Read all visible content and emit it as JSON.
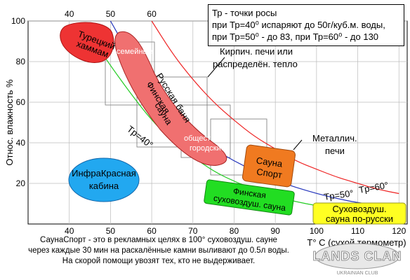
{
  "chart_data": {
    "type": "line",
    "xlabel": "T° C (сухой термометр)",
    "ylabel": "Относ. влажность %",
    "x_ticks_bottom": [
      40,
      50,
      60,
      70,
      80,
      90,
      100,
      110,
      120
    ],
    "x_ticks_top": [
      40,
      50,
      60
    ],
    "y_ticks": [
      20,
      40,
      60,
      80,
      100
    ],
    "xlim": [
      30,
      122
    ],
    "ylim": [
      0,
      100
    ],
    "grid": true,
    "series": [
      {
        "name": "Tp=40°",
        "color": "#22cc22",
        "x": [
          46,
          50,
          55,
          60,
          65,
          70,
          75,
          80,
          85,
          90,
          95,
          100,
          105,
          110,
          120
        ],
        "y": [
          90,
          78,
          64,
          51,
          41,
          33,
          26,
          21,
          17,
          13.5,
          11,
          9,
          7.5,
          6.5,
          5
        ]
      },
      {
        "name": "Tp=50°",
        "color": "#2233bb",
        "x": [
          50,
          55,
          60,
          65,
          70,
          75,
          80,
          85,
          90,
          95,
          100,
          105,
          110,
          120
        ],
        "y": [
          100,
          82,
          67,
          55,
          45,
          37,
          31,
          26,
          21.5,
          18,
          15,
          12.5,
          10.5,
          8
        ]
      },
      {
        "name": "Tp=60°",
        "color": "#ee2222",
        "x": [
          60,
          65,
          70,
          75,
          80,
          85,
          90,
          95,
          100,
          105,
          110,
          115,
          120
        ],
        "y": [
          100,
          84,
          71,
          60,
          51,
          43,
          37,
          31,
          27,
          23,
          20,
          17,
          15
        ]
      }
    ],
    "zones": [
      {
        "label": [
          "Турецкий",
          "хаммам"
        ],
        "fill": "#ee3333"
      },
      {
        "label": [
          "Русская баня",
          "Финская",
          "сауна"
        ],
        "fill": "#f07070"
      },
      {
        "label": [
          "семейные"
        ]
      },
      {
        "label": [
          "общеcтвен.",
          "городские"
        ]
      },
      {
        "label": [
          "ИнфраКрасная",
          "кабина"
        ],
        "fill": "#22a8f0"
      },
      {
        "label": [
          "Сауна",
          "Спорт"
        ],
        "fill": "#f07a20"
      },
      {
        "label": [
          "Финская",
          "суховоздуш. сауна"
        ],
        "fill": "#22dd22"
      },
      {
        "label": [
          "Суховоздуш.",
          "сауна по-русски"
        ],
        "fill": "#ffff22"
      }
    ],
    "annotations": {
      "heating1": [
        "Кирпич. печи или",
        "распределён. тепло"
      ],
      "heating2": [
        "Металлич.",
        "печи"
      ]
    }
  },
  "info": {
    "line1": "Тр - точки росы",
    "line2": "при Тр=40⁰  испаряют до 50г/куб.м. воды,",
    "line3": "при Тр=50⁰ - до 83,  при  Тр=60⁰ - до 130"
  },
  "caption": {
    "line1": "СаунаСпорт - это в рекламных целях в 100° суховоздуш. сауне",
    "line2": "через каждые 30 мин на раскалённые камни выливают до 0.5л воды.",
    "line3": "На скорой помощи увозят тех, кто  не выдерживает."
  },
  "logo": {
    "name": "LANDS CLAN",
    "sub": "UKRAINIAN CLUB"
  }
}
